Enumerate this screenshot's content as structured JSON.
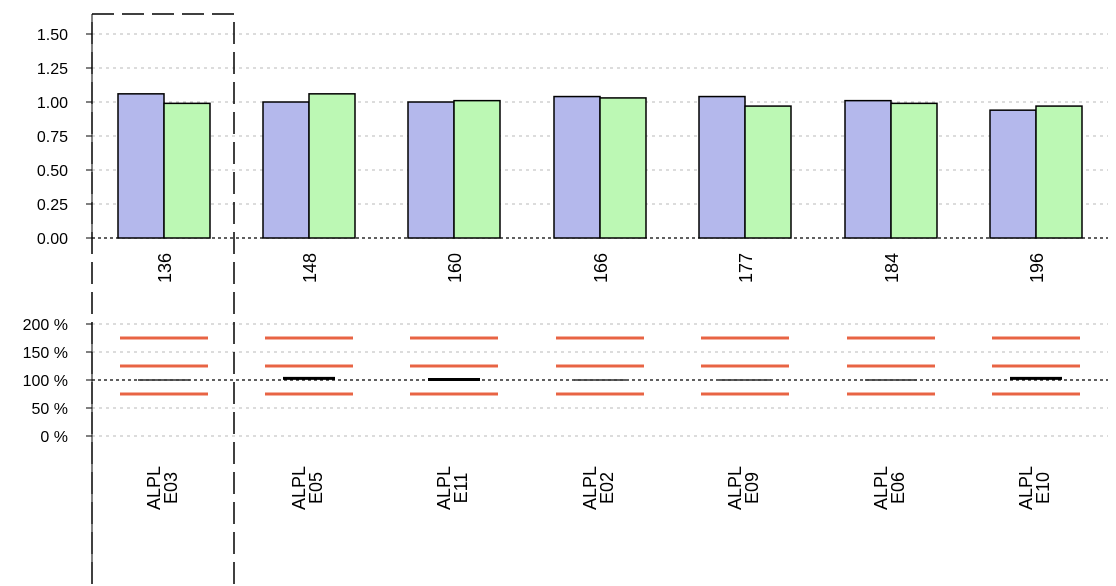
{
  "chart_data": [
    {
      "type": "bar",
      "categories": [
        "136",
        "148",
        "160",
        "166",
        "177",
        "184",
        "196"
      ],
      "series": [
        {
          "values": [
            1.06,
            1.0,
            1.0,
            1.04,
            1.04,
            1.01,
            0.94
          ],
          "color": "#b4b8ec"
        },
        {
          "values": [
            0.99,
            1.06,
            1.01,
            1.03,
            0.97,
            0.99,
            0.97
          ],
          "color": "#bcf8b4"
        }
      ],
      "yticks": [
        "0.00",
        "0.25",
        "0.50",
        "0.75",
        "1.00",
        "1.25",
        "1.50"
      ],
      "ylim": [
        0,
        1.6
      ],
      "grid": true,
      "highlighted_category": "136"
    },
    {
      "type": "line",
      "categories": [
        "ALPL E03",
        "ALPL E05",
        "ALPL E11",
        "ALPL E02",
        "ALPL E09",
        "ALPL E06",
        "ALPL E10"
      ],
      "category_lines": [
        [
          "ALPL",
          "E03"
        ],
        [
          "ALPL",
          "E05"
        ],
        [
          "ALPL",
          "E11"
        ],
        [
          "ALPL",
          "E02"
        ],
        [
          "ALPL",
          "E09"
        ],
        [
          "ALPL",
          "E06"
        ],
        [
          "ALPL",
          "E10"
        ]
      ],
      "yticks": [
        "0 %",
        "50 %",
        "100 %",
        "150 %",
        "200 %"
      ],
      "ylim": [
        0,
        200
      ],
      "threshold_levels": [
        75,
        125,
        175
      ],
      "threshold_color": "#e86444",
      "ratio_values": [
        100,
        103,
        101,
        100,
        100,
        100,
        103
      ],
      "grid": true
    }
  ]
}
